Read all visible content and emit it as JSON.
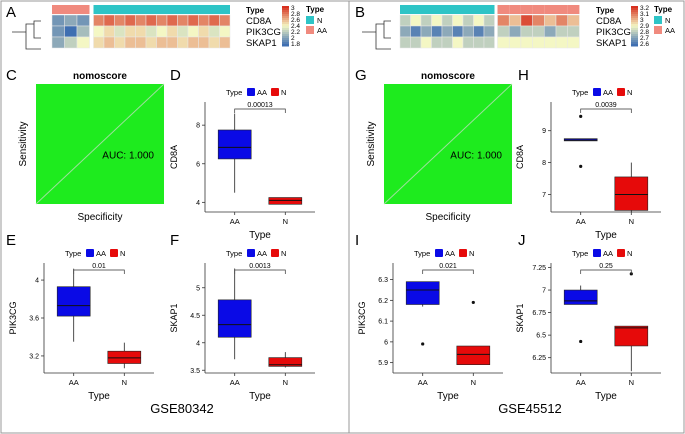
{
  "chart_data": [
    {
      "panel": "A",
      "type": "heatmap",
      "genes": [
        "CD8A",
        "PIK3CG",
        "SKAP1"
      ],
      "type_row": [
        "AA",
        "AA",
        "AA",
        "N",
        "N",
        "N",
        "N",
        "N",
        "N",
        "N",
        "N",
        "N",
        "N",
        "N",
        "N",
        "N"
      ],
      "values": [
        [
          1.9,
          2.0,
          1.9,
          2.8,
          2.9,
          2.8,
          2.9,
          2.8,
          2.9,
          2.8,
          2.9,
          2.8,
          2.9,
          2.8,
          2.9,
          2.8
        ],
        [
          1.9,
          1.6,
          2.1,
          2.4,
          2.5,
          2.3,
          2.5,
          2.5,
          2.3,
          2.4,
          2.5,
          2.3,
          2.4,
          2.5,
          2.3,
          2.4
        ],
        [
          2.0,
          2.2,
          2.4,
          2.5,
          2.6,
          2.5,
          2.6,
          2.6,
          2.5,
          2.6,
          2.6,
          2.5,
          2.6,
          2.6,
          2.5,
          2.6
        ]
      ],
      "scale_ticks": [
        "3",
        "2.8",
        "2.6",
        "2.4",
        "2.2",
        "2",
        "1.8"
      ],
      "scale_range": [
        1.7,
        3.1
      ],
      "legend_title": "Type",
      "legend_heading": "Type",
      "legend_items": [
        {
          "label": "N",
          "color": "#2EC4C6"
        },
        {
          "label": "AA",
          "color": "#F08A7E"
        }
      ]
    },
    {
      "panel": "B",
      "type": "heatmap",
      "genes": [
        "CD8A",
        "PIK3CG",
        "SKAP1"
      ],
      "type_row": [
        "N",
        "N",
        "N",
        "N",
        "N",
        "N",
        "N",
        "N",
        "N",
        "AA",
        "AA",
        "AA",
        "AA",
        "AA",
        "AA",
        "AA"
      ],
      "values": [
        [
          2.8,
          2.9,
          2.8,
          2.9,
          2.8,
          2.9,
          2.8,
          2.9,
          2.8,
          3.1,
          3.0,
          3.2,
          3.1,
          3.0,
          3.1,
          3.0
        ],
        [
          2.7,
          2.6,
          2.7,
          2.6,
          2.7,
          2.6,
          2.7,
          2.6,
          2.7,
          2.8,
          2.7,
          2.8,
          2.8,
          2.7,
          2.8,
          2.8
        ],
        [
          2.8,
          2.8,
          2.9,
          2.8,
          2.8,
          2.9,
          2.8,
          2.8,
          2.8,
          2.9,
          2.9,
          2.9,
          2.9,
          2.9,
          2.9,
          2.9
        ]
      ],
      "scale_ticks": [
        "3.2",
        "3.1",
        "3",
        "2.9",
        "2.8",
        "2.7",
        "2.6"
      ],
      "scale_range": [
        2.55,
        3.25
      ],
      "legend_title": "Type",
      "legend_heading": "Type",
      "legend_items": [
        {
          "label": "N",
          "color": "#2EC4C6"
        },
        {
          "label": "AA",
          "color": "#F08A7E"
        }
      ]
    },
    {
      "panel": "C",
      "type": "roc",
      "title": "nomoscore",
      "xlabel": "Specificity",
      "ylabel": "Sensitivity",
      "auc_label": "AUC: 1.000"
    },
    {
      "panel": "D",
      "type": "box",
      "xlabel": "Type",
      "ylabel": "CD8A",
      "categories": [
        "AA",
        "N"
      ],
      "ylim": [
        3.5,
        9.2
      ],
      "yticks": [
        4,
        6,
        8
      ],
      "boxes": [
        {
          "min": 4.5,
          "q1": 6.25,
          "median": 6.85,
          "q3": 7.75,
          "max": 8.6,
          "outliers": []
        },
        {
          "min": 3.9,
          "q1": 3.9,
          "median": 4.1,
          "q3": 4.25,
          "max": 4.25,
          "outliers": []
        }
      ],
      "pvalue": "0.00013",
      "legend_title": "Type",
      "legend_items": [
        {
          "label": "AA",
          "color": "#0A0AE6"
        },
        {
          "label": "N",
          "color": "#E60A0A"
        }
      ]
    },
    {
      "panel": "E",
      "type": "box",
      "xlabel": "Type",
      "ylabel": "PIK3CG",
      "categories": [
        "AA",
        "N"
      ],
      "ylim": [
        3.02,
        4.18
      ],
      "yticks": [
        3.2,
        3.6,
        4.0
      ],
      "boxes": [
        {
          "min": 3.35,
          "q1": 3.62,
          "median": 3.73,
          "q3": 3.93,
          "max": 4.12,
          "outliers": []
        },
        {
          "min": 3.07,
          "q1": 3.12,
          "median": 3.18,
          "q3": 3.25,
          "max": 3.34,
          "outliers": []
        }
      ],
      "pvalue": "0.01",
      "legend_title": "Type",
      "legend_items": [
        {
          "label": "AA",
          "color": "#0A0AE6"
        },
        {
          "label": "N",
          "color": "#E60A0A"
        }
      ]
    },
    {
      "panel": "F",
      "type": "box",
      "xlabel": "Type",
      "ylabel": "SKAP1",
      "categories": [
        "AA",
        "N"
      ],
      "ylim": [
        3.45,
        5.45
      ],
      "yticks": [
        3.5,
        4.0,
        4.5,
        5.0
      ],
      "boxes": [
        {
          "min": 3.7,
          "q1": 4.1,
          "median": 4.33,
          "q3": 4.78,
          "max": 5.35,
          "outliers": []
        },
        {
          "min": 3.55,
          "q1": 3.57,
          "median": 3.6,
          "q3": 3.73,
          "max": 3.83,
          "outliers": []
        }
      ],
      "pvalue": "0.0013",
      "legend_title": "Type",
      "legend_items": [
        {
          "label": "AA",
          "color": "#0A0AE6"
        },
        {
          "label": "N",
          "color": "#E60A0A"
        }
      ]
    },
    {
      "panel": "G",
      "type": "roc",
      "title": "nomoscore",
      "xlabel": "Specificity",
      "ylabel": "Sensitivity",
      "auc_label": "AUC: 1.000"
    },
    {
      "panel": "H",
      "type": "box",
      "xlabel": "Type",
      "ylabel": "CD8A",
      "categories": [
        "AA",
        "N"
      ],
      "ylim": [
        6.45,
        9.9
      ],
      "yticks": [
        7,
        8,
        9
      ],
      "boxes": [
        {
          "min": 8.68,
          "q1": 8.68,
          "median": 8.71,
          "q3": 8.75,
          "max": 8.75,
          "outliers": [
            9.45,
            7.88
          ]
        },
        {
          "min": 6.45,
          "q1": 6.5,
          "median": 7.0,
          "q3": 7.55,
          "max": 8.0,
          "outliers": []
        }
      ],
      "pvalue": "0.0039",
      "legend_title": "Type",
      "legend_items": [
        {
          "label": "AA",
          "color": "#0A0AE6"
        },
        {
          "label": "N",
          "color": "#E60A0A"
        }
      ]
    },
    {
      "panel": "I",
      "type": "box",
      "xlabel": "Type",
      "ylabel": "PIK3CG",
      "categories": [
        "AA",
        "N"
      ],
      "ylim": [
        5.85,
        6.38
      ],
      "yticks": [
        5.9,
        6.0,
        6.1,
        6.2,
        6.3
      ],
      "boxes": [
        {
          "min": 6.17,
          "q1": 6.18,
          "median": 6.25,
          "q3": 6.29,
          "max": 6.29,
          "outliers": [
            5.99
          ]
        },
        {
          "min": 5.89,
          "q1": 5.89,
          "median": 5.94,
          "q3": 5.98,
          "max": 5.98,
          "outliers": [
            6.19
          ]
        }
      ],
      "pvalue": "0.021",
      "legend_title": "Type",
      "legend_items": [
        {
          "label": "AA",
          "color": "#0A0AE6"
        },
        {
          "label": "N",
          "color": "#E60A0A"
        }
      ]
    },
    {
      "panel": "J",
      "type": "box",
      "xlabel": "Type",
      "ylabel": "SKAP1",
      "categories": [
        "AA",
        "N"
      ],
      "ylim": [
        6.08,
        7.3
      ],
      "yticks": [
        6.25,
        6.5,
        6.75,
        7.0,
        7.25
      ],
      "boxes": [
        {
          "min": 6.84,
          "q1": 6.84,
          "median": 6.88,
          "q3": 7.0,
          "max": 7.05,
          "outliers": [
            6.43
          ]
        },
        {
          "min": 6.1,
          "q1": 6.38,
          "median": 6.58,
          "q3": 6.6,
          "max": 6.6,
          "outliers": [
            7.18
          ]
        }
      ],
      "pvalue": "0.25",
      "legend_title": "Type",
      "legend_items": [
        {
          "label": "AA",
          "color": "#0A0AE6"
        },
        {
          "label": "N",
          "color": "#E60A0A"
        }
      ]
    }
  ],
  "datasets": {
    "left": "GSE80342",
    "right": "GSE45512"
  },
  "colors": {
    "aa_box": "#0A0AE6",
    "n_box": "#E60A0A",
    "roc_fill": "#1EEB1E",
    "heat_low": "#3F6FB1",
    "heat_mid": "#F4F7C4",
    "heat_high": "#D7301F",
    "type_n": "#2EC4C6",
    "type_aa": "#F08A7E"
  }
}
